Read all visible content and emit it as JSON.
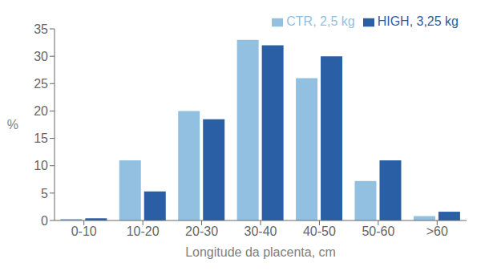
{
  "chart_data": {
    "type": "bar",
    "categories": [
      "0-10",
      "10-20",
      "20-30",
      "30-40",
      "40-50",
      "50-60",
      ">60"
    ],
    "series": [
      {
        "name": "CTR, 2,5 kg",
        "color": "#92c0e0",
        "values": [
          0.3,
          11.0,
          20.0,
          33.0,
          26.0,
          7.2,
          0.8
        ]
      },
      {
        "name": "HIGH, 3,25 kg",
        "color": "#2a5fa5",
        "values": [
          0.4,
          5.3,
          18.5,
          32.0,
          30.0,
          11.0,
          1.6
        ]
      }
    ],
    "xlabel": "Longitude da placenta, cm",
    "ylabel": "%",
    "ylim": [
      0,
      35
    ],
    "yticks": [
      0,
      5,
      10,
      15,
      20,
      25,
      30,
      35
    ],
    "grid": false,
    "legend": "upper right"
  }
}
